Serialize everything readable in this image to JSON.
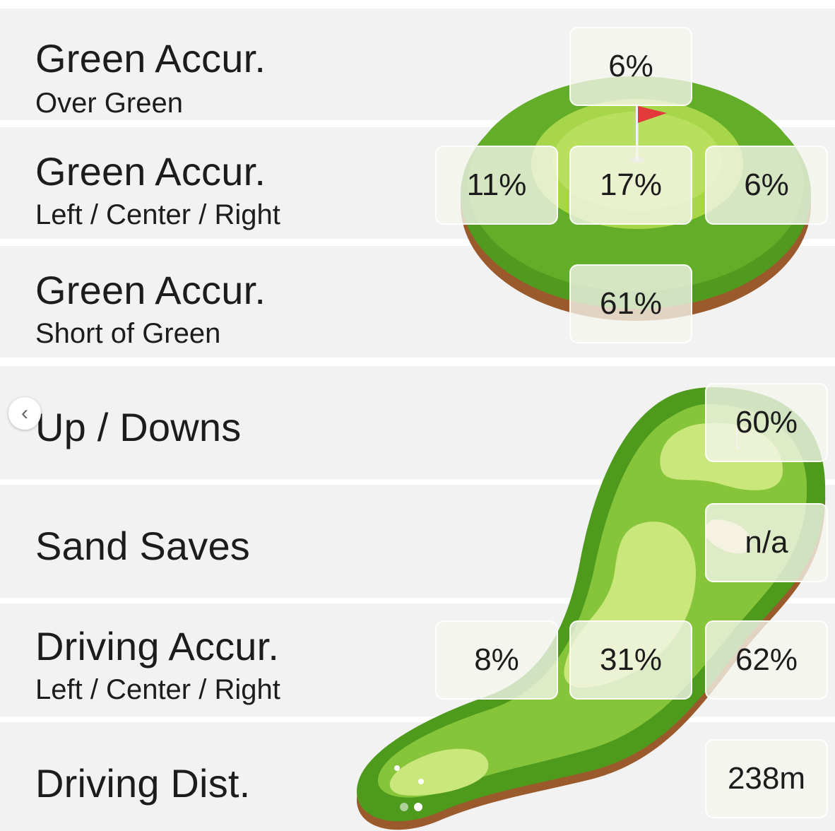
{
  "rows": [
    {
      "title": "Green Accur.",
      "subtitle": "Over Green"
    },
    {
      "title": "Green Accur.",
      "subtitle": "Left / Center / Right"
    },
    {
      "title": "Green Accur.",
      "subtitle": "Short of Green"
    },
    {
      "title": "Up / Downs",
      "subtitle": ""
    },
    {
      "title": "Sand Saves",
      "subtitle": ""
    },
    {
      "title": "Driving Accur.",
      "subtitle": "Left / Center / Right"
    },
    {
      "title": "Driving Dist.",
      "subtitle": ""
    }
  ],
  "stats": {
    "green_over": "6%",
    "green_left": "11%",
    "green_center": "17%",
    "green_right": "6%",
    "green_short": "61%",
    "up_downs": "60%",
    "sand_saves": "n/a",
    "driving_left": "8%",
    "driving_center": "31%",
    "driving_right": "62%",
    "driving_distance": "238m"
  },
  "icons": {
    "back": "chevron-left-icon",
    "flag": "golf-flag-icon"
  },
  "pagination": {
    "count": 2,
    "active_index": 1
  },
  "colors": {
    "row_background": "#f2f2f2",
    "fairway_dark": "#4e9a1c",
    "fairway_mid": "#86c43a",
    "fairway_light": "#c9e77a",
    "green_dark": "#4f9a1f",
    "green_light": "#b9df5e",
    "soil": "#9b5a2c",
    "flag_red": "#e23a3a"
  }
}
